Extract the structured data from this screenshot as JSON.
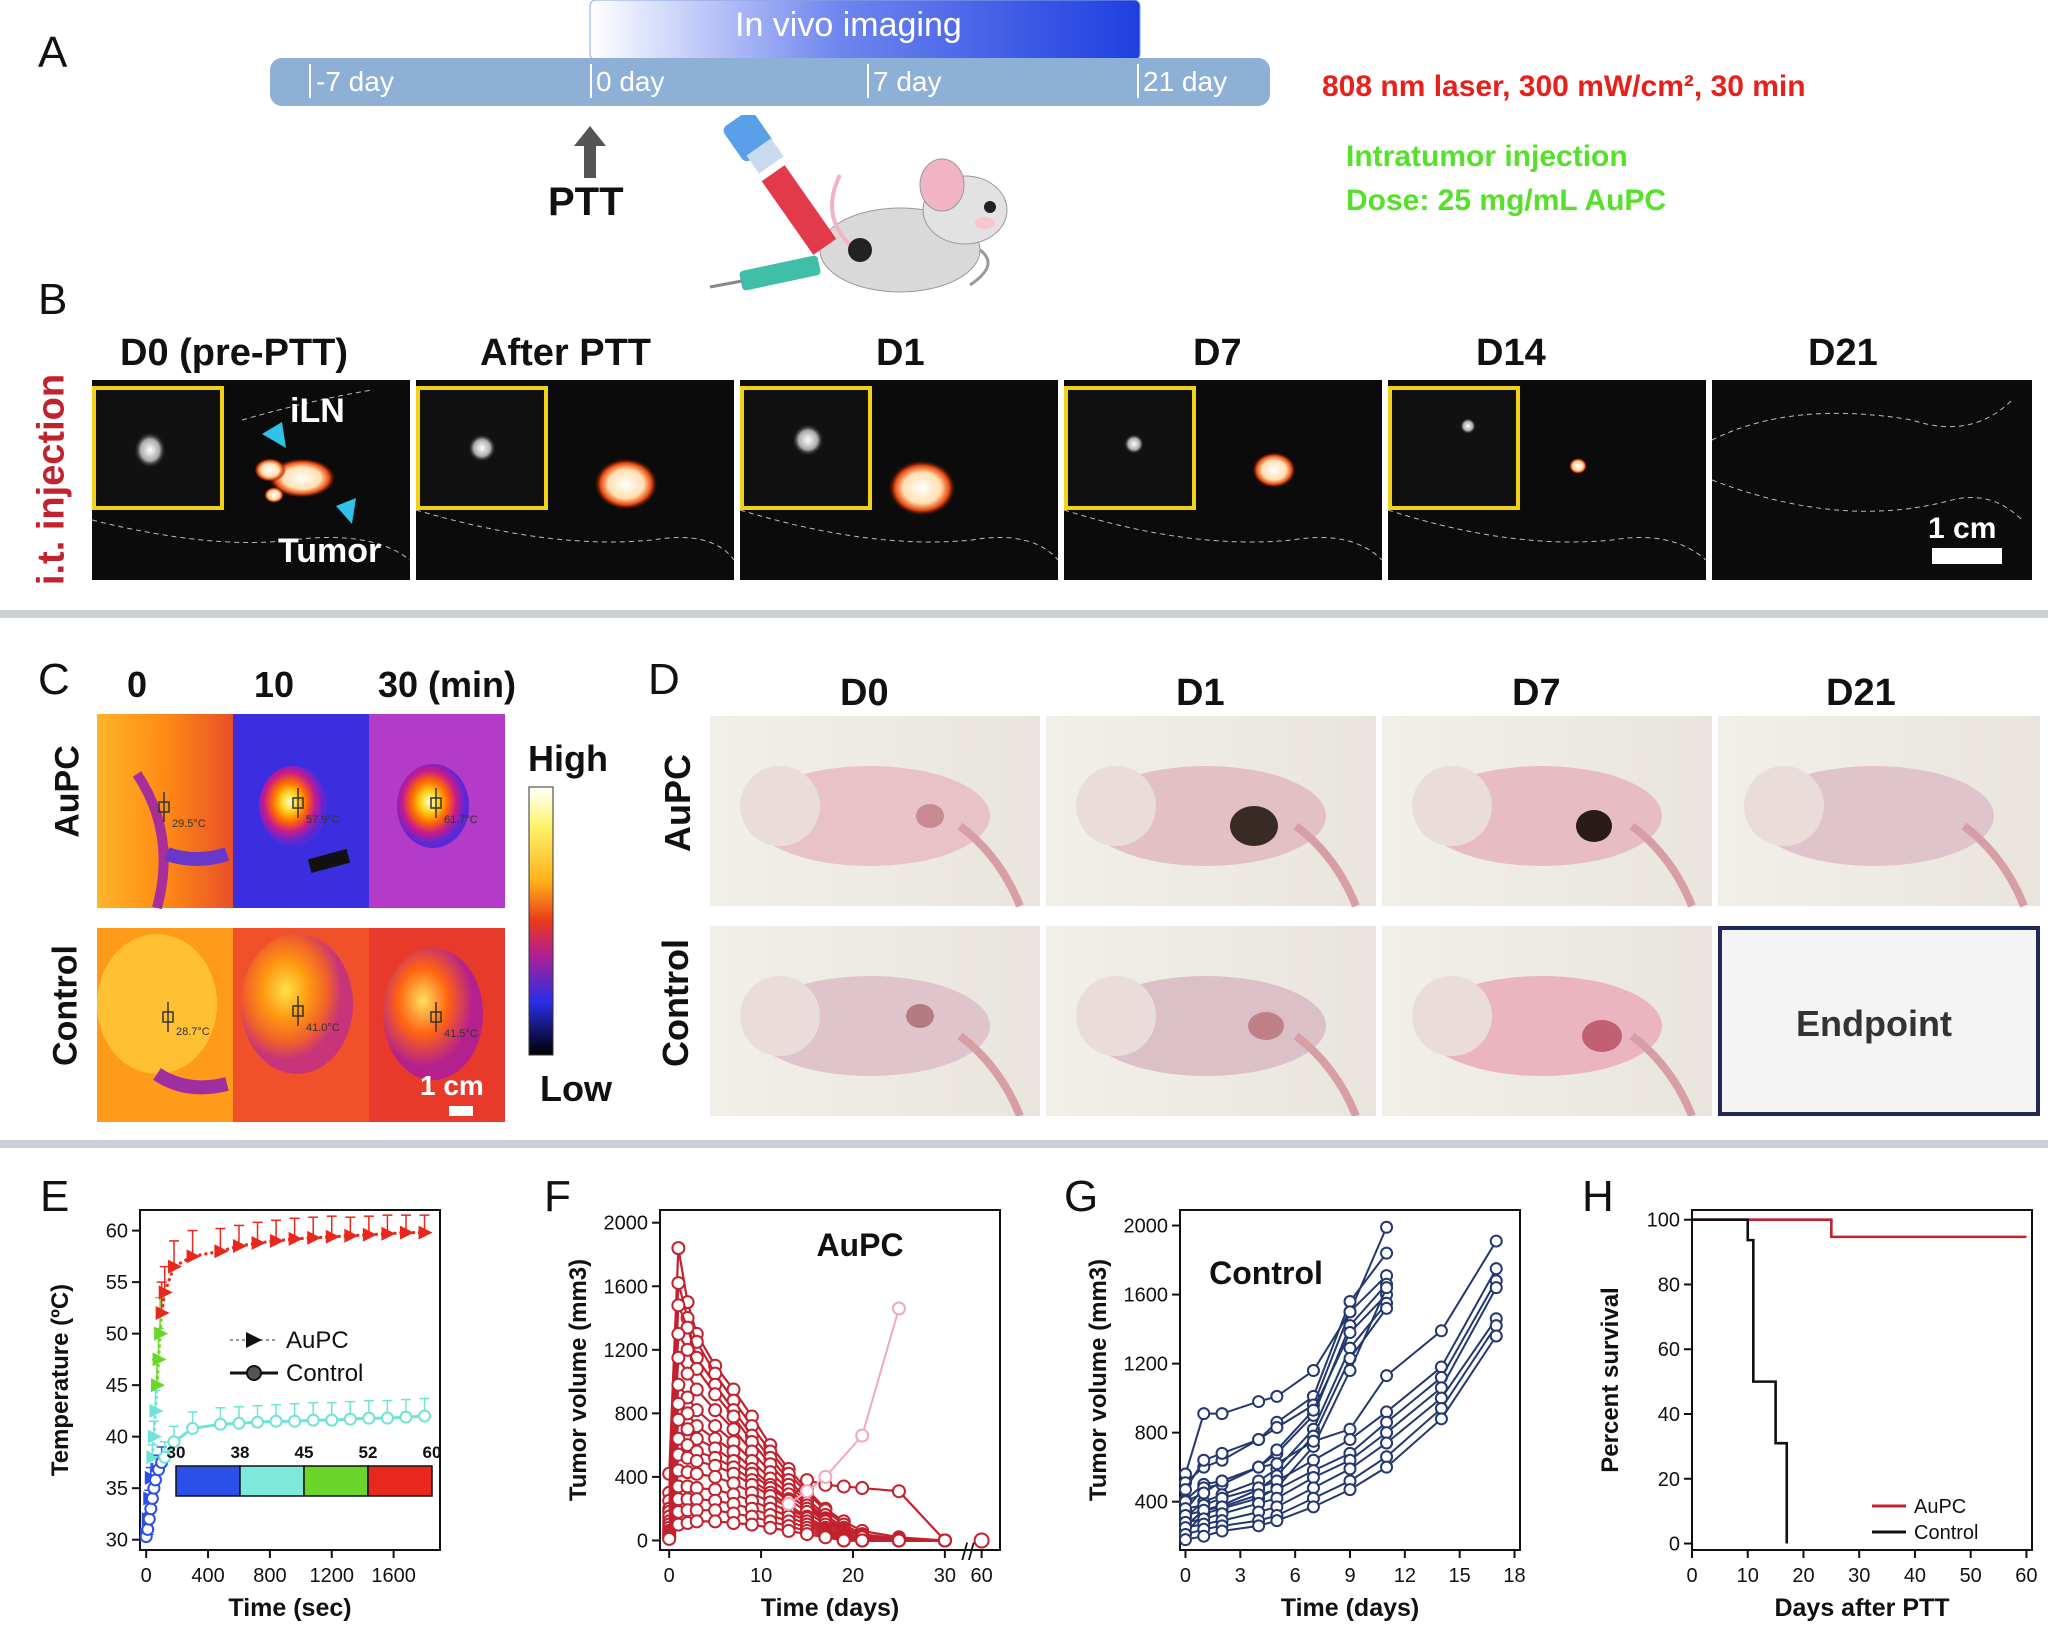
{
  "panelA": {
    "letter": "A",
    "banner": "In vivo imaging",
    "ticks": [
      "-7 day",
      "0 day",
      "7 day",
      "21 day"
    ],
    "ptt": "PTT",
    "laser": "808 nm laser, 300 mW/cm², 30 min",
    "injection": "Intratumor injection",
    "dose": "Dose: 25 mg/mL AuPC",
    "colors": {
      "bar": "#8fb0d6",
      "banner": "#1e3fe0",
      "laser": "#e8201c",
      "green": "#55e02a"
    }
  },
  "panelB": {
    "letter": "B",
    "side_label": "i.t. injection",
    "titles": [
      "D0 (pre-PTT)",
      "After PTT",
      "D1",
      "D7",
      "D14",
      "D21"
    ],
    "label_iln": "iLN",
    "label_tumor": "Tumor",
    "scale": "1 cm"
  },
  "panelC": {
    "letter": "C",
    "times": [
      "0",
      "10",
      "30 (min)"
    ],
    "rows": [
      "AuPC",
      "Control"
    ],
    "readouts": [
      [
        "29.5°C",
        "57.9°C",
        "61.7°C"
      ],
      [
        "28.7°C",
        "41.0°C",
        "41.5°C"
      ]
    ],
    "high": "High",
    "low": "Low",
    "scale": "1 cm"
  },
  "panelD": {
    "letter": "D",
    "days": [
      "D0",
      "D1",
      "D7",
      "D21"
    ],
    "rows": [
      "AuPC",
      "Control"
    ],
    "endpoint": "Endpoint"
  },
  "panelE": {
    "letter": "E",
    "colorbar_ticks": [
      "30",
      "38",
      "45",
      "52",
      "60"
    ],
    "chart_data": {
      "type": "line",
      "xlabel": "Time (sec)",
      "ylabel": "Temperature (ºC)",
      "xlim": [
        -40,
        1900
      ],
      "ylim": [
        29,
        62
      ],
      "xticks": [
        0,
        400,
        800,
        1200,
        1600
      ],
      "yticks": [
        30,
        35,
        40,
        45,
        50,
        55,
        60
      ],
      "legend": [
        "AuPC",
        "Control"
      ],
      "series": [
        {
          "name": "AuPC",
          "x": [
            0,
            10,
            20,
            30,
            40,
            50,
            60,
            70,
            80,
            90,
            100,
            120,
            180,
            300,
            480,
            600,
            720,
            840,
            960,
            1080,
            1200,
            1320,
            1440,
            1560,
            1680,
            1800
          ],
          "y": [
            30.5,
            32,
            34,
            36,
            38,
            40,
            42.5,
            45,
            47.5,
            50,
            52,
            54,
            56.5,
            57.5,
            58,
            58.5,
            58.8,
            59,
            59.2,
            59.3,
            59.4,
            59.5,
            59.6,
            59.7,
            59.8,
            59.8
          ],
          "err": [
            0.3,
            0.5,
            0.8,
            1,
            1.2,
            1.5,
            2,
            2.5,
            3,
            3.5,
            3,
            2.5,
            2.5,
            2.5,
            2.2,
            2,
            2,
            2,
            2,
            2,
            2,
            1.8,
            1.8,
            1.8,
            1.7,
            1.7
          ]
        },
        {
          "name": "Control",
          "x": [
            0,
            10,
            20,
            30,
            40,
            50,
            60,
            80,
            100,
            120,
            180,
            300,
            480,
            600,
            720,
            840,
            960,
            1080,
            1200,
            1320,
            1440,
            1560,
            1680,
            1800
          ],
          "y": [
            30.3,
            31,
            32,
            33,
            34,
            35,
            35.8,
            36.8,
            37.5,
            38,
            39.5,
            40.8,
            41.2,
            41.3,
            41.4,
            41.5,
            41.5,
            41.6,
            41.6,
            41.7,
            41.8,
            41.8,
            41.9,
            42
          ],
          "err": [
            0.3,
            0.4,
            0.6,
            0.8,
            1,
            1.2,
            1.3,
            1.4,
            1.5,
            1.5,
            1.5,
            1.6,
            1.6,
            1.6,
            1.6,
            1.6,
            1.7,
            1.7,
            1.7,
            1.7,
            1.7,
            1.7,
            1.7,
            1.7
          ]
        }
      ]
    }
  },
  "panelF": {
    "letter": "F",
    "chart_data": {
      "type": "line",
      "title": "AuPC",
      "xlabel": "Time (days)",
      "ylabel": "Tumor volume (mm3)",
      "xlim": [
        -1,
        36
      ],
      "ylim": [
        -60,
        2080
      ],
      "xticks": [
        "0",
        "10",
        "20",
        "30",
        "60"
      ],
      "yticks": [
        0,
        400,
        800,
        1200,
        1600,
        2000
      ],
      "x": [
        0,
        1,
        2,
        3,
        5,
        7,
        9,
        11,
        13,
        15,
        17,
        19,
        21,
        25,
        30,
        60
      ],
      "series": [
        {
          "name": "m1",
          "values": [
            420,
            1840,
            1500,
            1300,
            1100,
            950,
            780,
            600,
            450,
            320,
            200,
            120,
            60,
            20,
            0,
            0
          ]
        },
        {
          "name": "m2",
          "values": [
            300,
            1620,
            1400,
            1250,
            1050,
            880,
            720,
            560,
            420,
            300,
            190,
            100,
            40,
            10,
            0,
            0
          ]
        },
        {
          "name": "m3",
          "values": [
            250,
            1480,
            1340,
            1150,
            980,
            820,
            660,
            520,
            380,
            260,
            160,
            80,
            30,
            0,
            0,
            0
          ]
        },
        {
          "name": "m4",
          "values": [
            200,
            1300,
            1200,
            1080,
            920,
            780,
            620,
            480,
            350,
            240,
            140,
            70,
            20,
            0,
            0,
            0
          ]
        },
        {
          "name": "m5",
          "values": [
            180,
            1150,
            1050,
            950,
            820,
            700,
            560,
            430,
            320,
            220,
            130,
            60,
            0,
            0,
            0,
            0
          ]
        },
        {
          "name": "m6",
          "values": [
            150,
            980,
            900,
            820,
            720,
            620,
            500,
            390,
            290,
            200,
            120,
            50,
            0,
            0,
            0,
            0
          ]
        },
        {
          "name": "m7",
          "values": [
            120,
            860,
            800,
            720,
            640,
            560,
            450,
            350,
            260,
            180,
            100,
            40,
            0,
            0,
            0,
            0
          ]
        },
        {
          "name": "m8",
          "values": [
            100,
            760,
            700,
            640,
            580,
            500,
            420,
            330,
            250,
            380,
            350,
            340,
            330,
            310,
            0,
            0
          ]
        },
        {
          "name": "m9",
          "values": [
            80,
            640,
            600,
            560,
            520,
            460,
            380,
            300,
            220,
            150,
            80,
            30,
            0,
            0,
            0,
            0
          ]
        },
        {
          "name": "m10",
          "values": [
            60,
            540,
            520,
            500,
            470,
            420,
            350,
            280,
            200,
            140,
            70,
            20,
            0,
            0,
            0,
            0
          ]
        },
        {
          "name": "m11",
          "values": [
            50,
            440,
            430,
            420,
            400,
            360,
            300,
            240,
            180,
            120,
            60,
            10,
            0,
            0,
            0,
            0
          ]
        },
        {
          "name": "m12",
          "values": [
            40,
            340,
            340,
            330,
            320,
            290,
            250,
            200,
            150,
            100,
            50,
            0,
            0,
            0,
            0,
            0
          ]
        },
        {
          "name": "m13",
          "values": [
            30,
            260,
            260,
            260,
            250,
            230,
            200,
            160,
            120,
            80,
            40,
            0,
            0,
            0,
            0,
            0
          ]
        },
        {
          "name": "m14",
          "values": [
            20,
            180,
            190,
            190,
            190,
            170,
            150,
            120,
            90,
            60,
            30,
            0,
            0,
            0,
            0,
            0
          ]
        },
        {
          "name": "m15",
          "values": [
            10,
            100,
            110,
            120,
            120,
            110,
            100,
            80,
            60,
            40,
            20,
            0,
            0,
            0,
            0,
            0
          ]
        }
      ],
      "outlier": {
        "name": "relapse",
        "x": [
          13,
          15,
          17,
          21,
          25
        ],
        "values": [
          230,
          310,
          400,
          660,
          1460
        ]
      }
    }
  },
  "panelG": {
    "letter": "G",
    "chart_data": {
      "type": "line",
      "title": "Control",
      "xlabel": "Time (days)",
      "ylabel": "Tumor volume (mm3)",
      "xlim": [
        -0.3,
        18.3
      ],
      "ylim": [
        120,
        2090
      ],
      "xticks": [
        0,
        3,
        6,
        9,
        12,
        15,
        18
      ],
      "yticks": [
        400,
        800,
        1200,
        1600,
        2000
      ],
      "x_early": [
        0,
        1,
        2,
        4,
        5,
        7,
        9,
        11
      ],
      "series_early": [
        {
          "name": "c1",
          "values": [
            560,
            910,
            910,
            980,
            1010,
            1160,
            1500,
            1990
          ]
        },
        {
          "name": "c2",
          "values": [
            510,
            600,
            640,
            760,
            860,
            1010,
            1560,
            1840
          ]
        },
        {
          "name": "c3",
          "values": [
            470,
            640,
            680,
            760,
            830,
            960,
            1500,
            1710
          ]
        },
        {
          "name": "c4",
          "values": [
            410,
            500,
            520,
            600,
            680,
            900,
            1420,
            1660
          ]
        },
        {
          "name": "c5",
          "values": [
            350,
            480,
            500,
            600,
            700,
            930,
            1380,
            1600
          ]
        },
        {
          "name": "c6",
          "values": [
            310,
            400,
            440,
            520,
            590,
            820,
            1290,
            1550
          ]
        },
        {
          "name": "c7",
          "values": [
            260,
            350,
            380,
            470,
            550,
            780,
            1230,
            1520
          ]
        },
        {
          "name": "c8",
          "values": [
            220,
            330,
            360,
            420,
            480,
            720,
            1160,
            1640
          ]
        }
      ],
      "x_late": [
        0,
        1,
        2,
        4,
        5,
        7,
        9,
        11,
        14,
        17
      ],
      "series_late": [
        {
          "name": "c9",
          "values": [
            400,
            450,
            520,
            600,
            620,
            750,
            820,
            1130,
            1390,
            1910
          ]
        },
        {
          "name": "c10",
          "values": [
            360,
            380,
            420,
            480,
            520,
            640,
            760,
            920,
            1180,
            1750
          ]
        },
        {
          "name": "c11",
          "values": [
            320,
            350,
            370,
            440,
            470,
            580,
            680,
            860,
            1120,
            1680
          ]
        },
        {
          "name": "c12",
          "values": [
            280,
            300,
            330,
            390,
            420,
            540,
            640,
            800,
            1060,
            1640
          ]
        },
        {
          "name": "c13",
          "values": [
            250,
            270,
            290,
            340,
            370,
            480,
            590,
            740,
            1000,
            1460
          ]
        },
        {
          "name": "c14",
          "values": [
            210,
            240,
            260,
            290,
            320,
            420,
            520,
            660,
            940,
            1420
          ]
        },
        {
          "name": "c15",
          "values": [
            180,
            200,
            230,
            260,
            290,
            370,
            470,
            600,
            880,
            1360
          ]
        }
      ]
    }
  },
  "panelH": {
    "letter": "H",
    "chart_data": {
      "type": "line",
      "xlabel": "Days after PTT",
      "ylabel": "Percent survival",
      "xlim": [
        0,
        61
      ],
      "ylim": [
        -2,
        103
      ],
      "xticks": [
        0,
        10,
        20,
        30,
        40,
        50,
        60
      ],
      "yticks": [
        0,
        20,
        40,
        60,
        80,
        100
      ],
      "series": [
        {
          "name": "AuPC",
          "x": [
            0,
            25,
            25,
            60
          ],
          "values": [
            100,
            100,
            94.7,
            94.7
          ],
          "color": "#c2222e"
        },
        {
          "name": "Control",
          "x": [
            0,
            10,
            10,
            11,
            11,
            13,
            13,
            15,
            15,
            17,
            17
          ],
          "values": [
            100,
            100,
            93.7,
            93.7,
            50,
            50,
            50,
            50,
            31,
            31,
            0
          ],
          "color": "#111111"
        }
      ]
    }
  }
}
